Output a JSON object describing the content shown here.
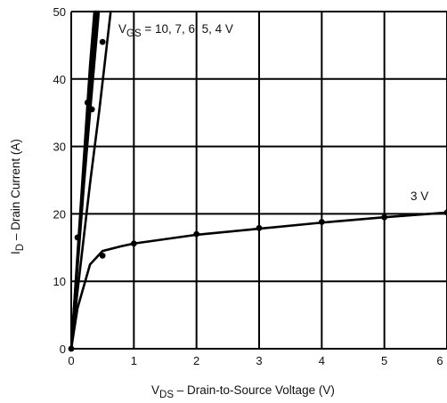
{
  "chart_data": {
    "type": "line",
    "xlabel_main": "V",
    "xlabel_sub": "DS",
    "xlabel_rest": " – Drain-to-Source Voltage (V)",
    "ylabel_main": "I",
    "ylabel_sub": "D",
    "ylabel_rest": " – Drain Current (A)",
    "xlim": [
      0,
      6
    ],
    "ylim": [
      0,
      50
    ],
    "x_ticks": [
      0,
      1,
      2,
      3,
      4,
      5,
      6
    ],
    "y_ticks": [
      0,
      10,
      20,
      30,
      40,
      50
    ],
    "grid": true,
    "annotations": {
      "vgs_prefix": "V",
      "vgs_sub": "GS",
      "vgs_rest": " = 10, 7, 6, 5, 4 V",
      "three_v": "3 V"
    },
    "series": [
      {
        "name": "10 V",
        "x": [
          0,
          0.1,
          0.2,
          0.3,
          0.37
        ],
        "y": [
          0,
          14,
          28,
          42,
          50
        ]
      },
      {
        "name": "7 V",
        "x": [
          0,
          0.1,
          0.2,
          0.3,
          0.39
        ],
        "y": [
          0,
          13.5,
          27,
          40,
          50
        ]
      },
      {
        "name": "6 V",
        "x": [
          0,
          0.1,
          0.2,
          0.3,
          0.41
        ],
        "y": [
          0,
          13,
          26,
          38,
          50
        ]
      },
      {
        "name": "5 V",
        "x": [
          0,
          0.1,
          0.2,
          0.3,
          0.44
        ],
        "y": [
          0,
          12,
          24,
          35,
          50
        ]
      },
      {
        "name": "4 V",
        "x": [
          0,
          0.1,
          0.2,
          0.3,
          0.45,
          0.63
        ],
        "y": [
          0,
          8.5,
          16.5,
          24.5,
          35.5,
          50
        ]
      },
      {
        "name": "3 V",
        "x": [
          0,
          0.1,
          0.3,
          0.5,
          0.8,
          1.0,
          2.0,
          3.0,
          4.0,
          5.0,
          6.0
        ],
        "y": [
          0,
          6,
          12.5,
          14.5,
          15.2,
          15.6,
          16.9,
          17.8,
          18.7,
          19.5,
          20.2
        ]
      }
    ],
    "markers": [
      {
        "x": 0,
        "y": 0
      },
      {
        "x": 0.5,
        "y": 13.8
      },
      {
        "x": 1.0,
        "y": 15.6
      },
      {
        "x": 2.0,
        "y": 17.0
      },
      {
        "x": 3.0,
        "y": 17.9
      },
      {
        "x": 4.0,
        "y": 18.8
      },
      {
        "x": 5.0,
        "y": 19.5
      },
      {
        "x": 6.0,
        "y": 20.2
      },
      {
        "x": 0.33,
        "y": 35.5
      },
      {
        "x": 0.5,
        "y": 45.5
      },
      {
        "x": 0.26,
        "y": 36.5
      },
      {
        "x": 0.1,
        "y": 16.5
      }
    ]
  }
}
